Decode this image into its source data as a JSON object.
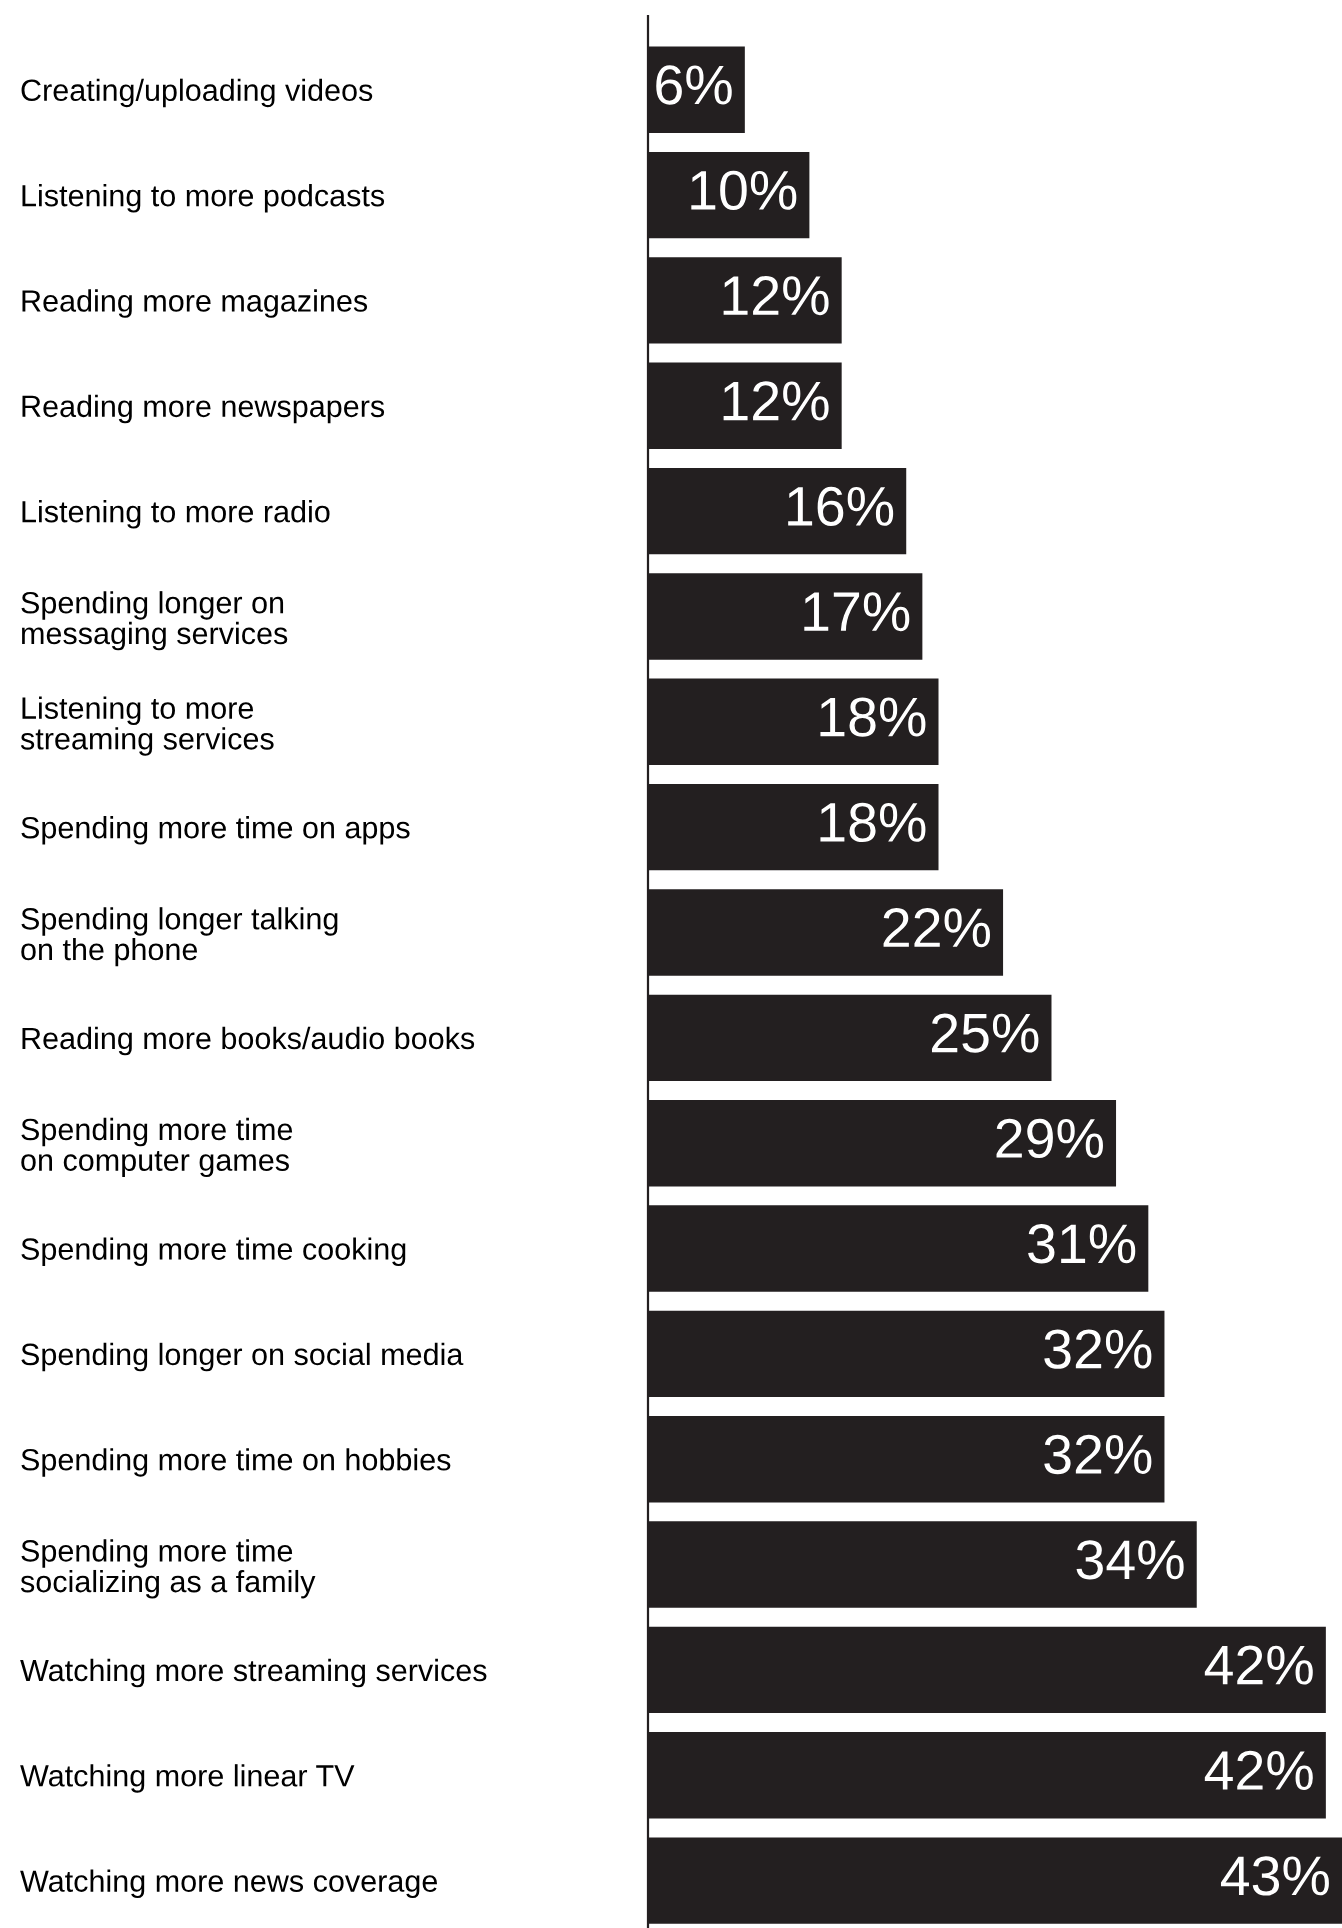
{
  "chart_data": {
    "type": "bar",
    "orientation": "horizontal",
    "categories": [
      "Creating/uploading videos",
      "Listening to more podcasts",
      "Reading more magazines",
      "Reading more newspapers",
      "Listening to more radio",
      "Spending longer on\nmessaging services",
      "Listening to more\nstreaming services",
      "Spending more time on apps",
      "Spending longer talking\non the phone",
      "Reading more books/audio books",
      "Spending more time\non computer games",
      "Spending more time cooking",
      "Spending longer on social media",
      "Spending more time on hobbies",
      "Spending more time\nsocializing as a family",
      "Watching more streaming services",
      "Watching more linear TV",
      "Watching more news coverage"
    ],
    "values": [
      6,
      10,
      12,
      12,
      16,
      17,
      18,
      18,
      22,
      25,
      29,
      31,
      32,
      32,
      34,
      42,
      42,
      43
    ],
    "value_labels": [
      "6%",
      "10%",
      "12%",
      "12%",
      "16%",
      "17%",
      "18%",
      "18%",
      "22%",
      "25%",
      "29%",
      "31%",
      "32%",
      "32%",
      "34%",
      "42%",
      "42%",
      "43%"
    ],
    "color": "#231f20",
    "grid": false,
    "legend": false
  }
}
